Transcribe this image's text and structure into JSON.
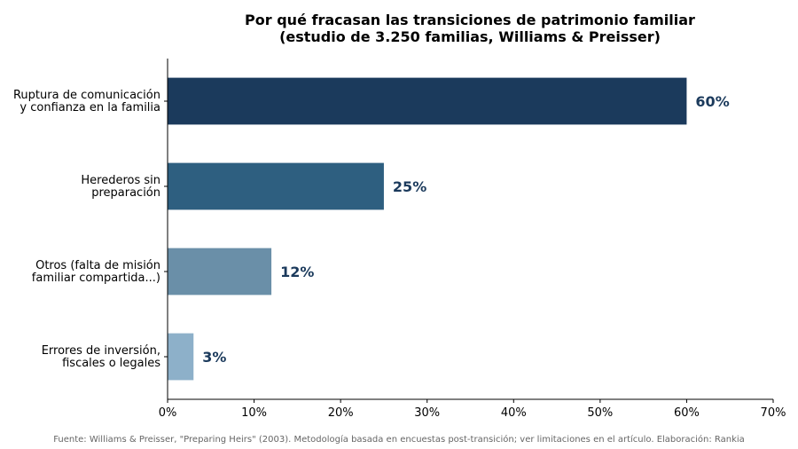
{
  "chart_data": {
    "type": "bar",
    "orientation": "horizontal",
    "title_lines": [
      "Por qué fracasan las transiciones de patrimonio familiar",
      "(estudio de 3.250 familias, Williams & Preisser)"
    ],
    "categories": [
      [
        "Ruptura de comunicación",
        "y confianza en la familia"
      ],
      [
        "Herederos sin",
        "preparación"
      ],
      [
        "Otros (falta de misión",
        "familiar compartida...)"
      ],
      [
        "Errores de inversión,",
        "fiscales o legales"
      ]
    ],
    "values": [
      60,
      25,
      12,
      3
    ],
    "value_labels": [
      "60%",
      "25%",
      "12%",
      "3%"
    ],
    "bar_colors": [
      "#1b3a5c",
      "#2e5f80",
      "#6a8fa8",
      "#8db0c9"
    ],
    "value_label_color": "#1b3a5c",
    "xlim": [
      0,
      70
    ],
    "x_ticks": [
      0,
      10,
      20,
      30,
      40,
      50,
      60,
      70
    ],
    "x_tick_labels": [
      "0%",
      "10%",
      "20%",
      "30%",
      "40%",
      "50%",
      "60%",
      "70%"
    ],
    "xlabel": "",
    "ylabel": "",
    "grid": false,
    "legend": "none"
  },
  "source_note": "Fuente: Williams & Preisser, \"Preparing Heirs\" (2003). Metodología basada en encuestas post-transición; ver limitaciones en el artículo. Elaboración: Rankia"
}
